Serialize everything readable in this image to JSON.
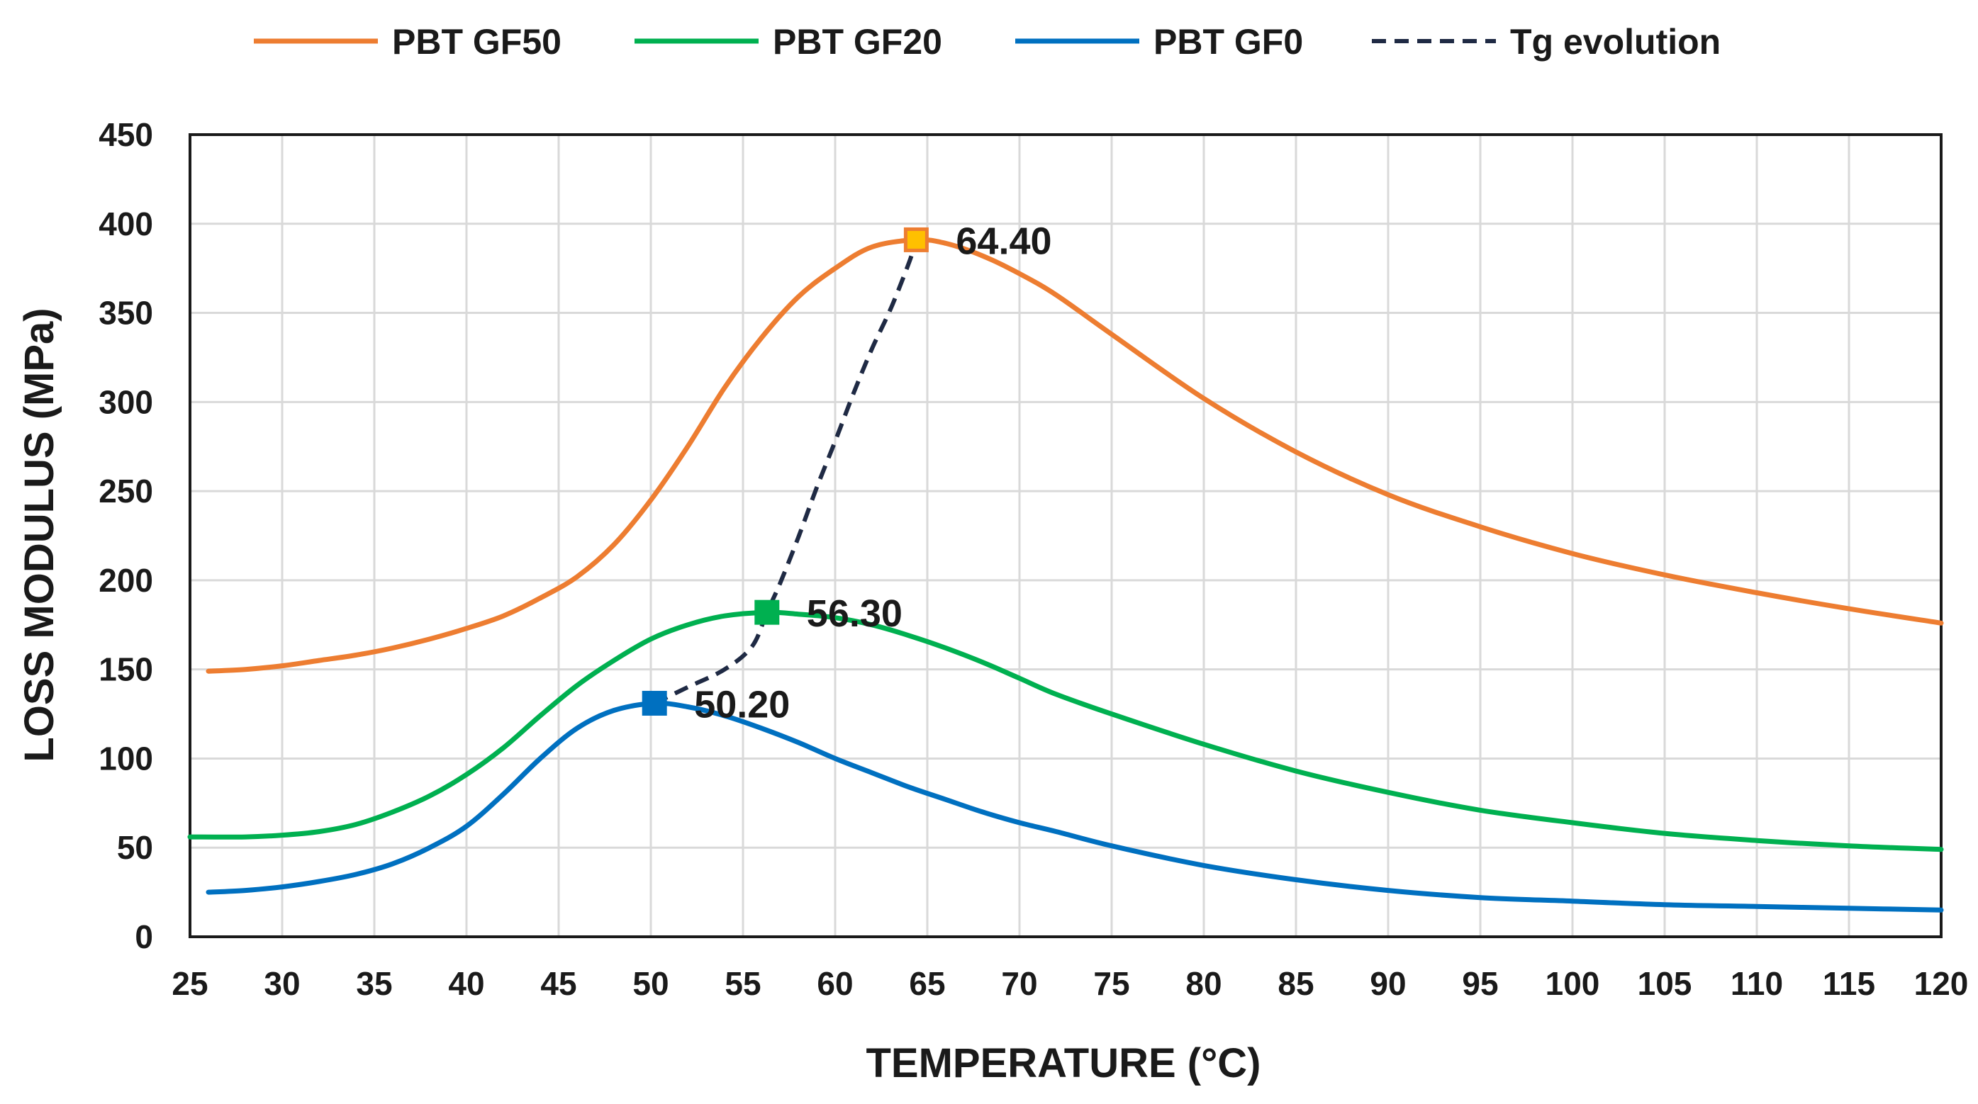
{
  "chart_data": {
    "type": "line",
    "title": "",
    "xlabel": "TEMPERATURE (°C)",
    "ylabel": "LOSS MODULUS (MPa)",
    "xlim": [
      25,
      120
    ],
    "ylim": [
      0,
      450
    ],
    "xticks": [
      25,
      30,
      35,
      40,
      45,
      50,
      55,
      60,
      65,
      70,
      75,
      80,
      85,
      90,
      95,
      100,
      105,
      110,
      115,
      120
    ],
    "yticks": [
      0,
      50,
      100,
      150,
      200,
      250,
      300,
      350,
      400,
      450
    ],
    "grid": true,
    "legend_position": "top",
    "series": [
      {
        "name": "PBT GF50",
        "color": "#ED7D31",
        "style": "solid",
        "x": [
          26,
          28,
          30,
          32,
          34,
          36,
          38,
          40,
          42,
          44,
          46,
          48,
          50,
          52,
          54,
          56,
          58,
          60,
          62,
          64.4,
          66,
          68,
          70,
          72,
          75,
          80,
          85,
          90,
          95,
          100,
          105,
          110,
          115,
          120
        ],
        "y": [
          149,
          150,
          152,
          155,
          158,
          162,
          167,
          173,
          180,
          190,
          202,
          220,
          245,
          275,
          308,
          336,
          359,
          375,
          387,
          391,
          389,
          382,
          372,
          360,
          338,
          302,
          272,
          248,
          230,
          215,
          203,
          193,
          184,
          176
        ]
      },
      {
        "name": "PBT GF20",
        "color": "#00B050",
        "style": "solid",
        "x": [
          25,
          28,
          30,
          32,
          34,
          36,
          38,
          40,
          42,
          44,
          46,
          48,
          50,
          52,
          54,
          56.3,
          58,
          60,
          62,
          64,
          66,
          68,
          70,
          72,
          75,
          80,
          85,
          90,
          95,
          100,
          105,
          110,
          115,
          120
        ],
        "y": [
          56,
          56,
          57,
          59,
          63,
          70,
          79,
          91,
          106,
          124,
          141,
          155,
          167,
          175,
          180,
          182,
          181,
          179,
          175,
          169,
          162,
          154,
          145,
          136,
          125,
          108,
          93,
          81,
          71,
          64,
          58,
          54,
          51,
          49
        ]
      },
      {
        "name": "PBT GF0",
        "color": "#0070C0",
        "style": "solid",
        "x": [
          26,
          28,
          30,
          32,
          34,
          36,
          38,
          40,
          42,
          44,
          46,
          48,
          50.2,
          52,
          54,
          56,
          58,
          60,
          62,
          64,
          66,
          68,
          70,
          72,
          75,
          80,
          85,
          90,
          95,
          100,
          105,
          110,
          115,
          120
        ],
        "y": [
          25,
          26,
          28,
          31,
          35,
          41,
          50,
          62,
          80,
          100,
          117,
          127,
          131,
          129,
          124,
          117,
          109,
          100,
          92,
          84,
          77,
          70,
          64,
          59,
          51,
          40,
          32,
          26,
          22,
          20,
          18,
          17,
          16,
          15
        ]
      },
      {
        "name": "Tg evolution",
        "color": "#1F2A44",
        "style": "dashed",
        "x": [
          50.2,
          52,
          54,
          55.5,
          56.3,
          57,
          58,
          59,
          60,
          61,
          62,
          63,
          64,
          64.4
        ],
        "y": [
          131,
          140,
          150,
          163,
          182,
          198,
          224,
          252,
          278,
          305,
          330,
          352,
          378,
          391
        ]
      }
    ],
    "points": [
      {
        "series": "PBT GF50",
        "x": 64.4,
        "y": 391,
        "label": "64.40",
        "color": "#FFC000",
        "edge": "#ED7D31"
      },
      {
        "series": "PBT GF20",
        "x": 56.3,
        "y": 182,
        "label": "56.30",
        "color": "#00B050",
        "edge": "#00B050"
      },
      {
        "series": "PBT GF0",
        "x": 50.2,
        "y": 131,
        "label": "50.20",
        "color": "#0070C0",
        "edge": "#0070C0"
      }
    ]
  }
}
